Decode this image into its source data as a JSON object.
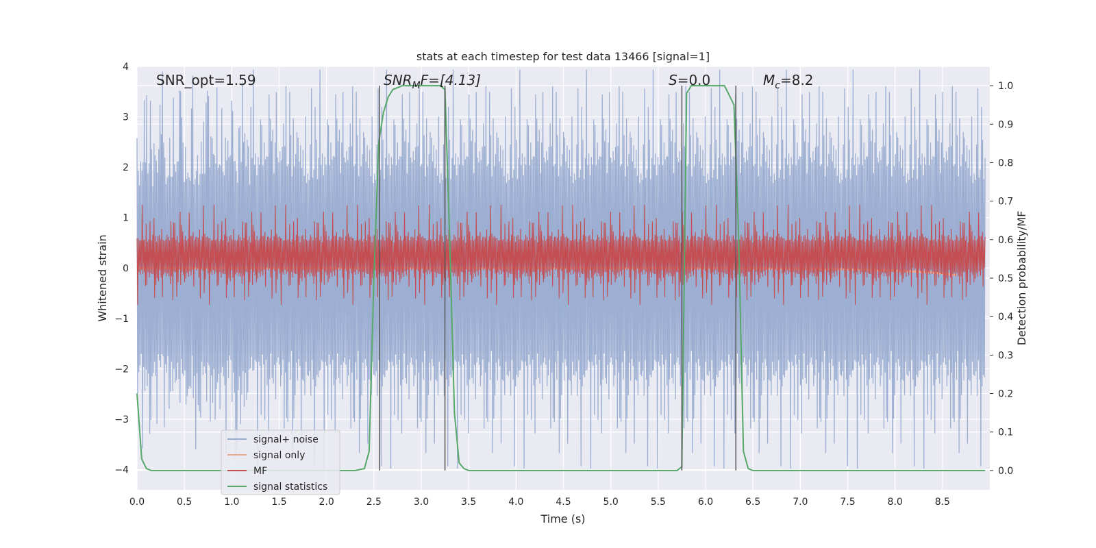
{
  "chart_data": {
    "type": "line",
    "title": "stats at each timestep for test data 13466 [signal=1]",
    "xlabel": "Time (s)",
    "ylabel": "Whitened strain",
    "y2label": "Detection probability/MF",
    "xlim": [
      0,
      9
    ],
    "ylim": [
      -4.4,
      4
    ],
    "y2lim": [
      -0.05,
      1.05
    ],
    "xticks": [
      "0.0",
      "0.5",
      "1.0",
      "1.5",
      "2.0",
      "2.5",
      "3.0",
      "3.5",
      "4.0",
      "4.5",
      "5.0",
      "5.5",
      "6.0",
      "6.5",
      "7.0",
      "7.5",
      "8.0",
      "8.5"
    ],
    "yticks": [
      "4",
      "3",
      "2",
      "1",
      "0",
      "−1",
      "−2",
      "−3",
      "−4"
    ],
    "y2ticks": [
      "0.0",
      "0.1",
      "0.2",
      "0.3",
      "0.4",
      "0.5",
      "0.6",
      "0.7",
      "0.8",
      "0.9",
      "1.0"
    ],
    "grid": true,
    "legend_position": "lower-left",
    "annotations": {
      "snr_opt": "SNR_opt=1.59",
      "snr_mf_main": "SNR",
      "snr_mf_sub": "M",
      "snr_mf_tail": "F=[4.13]",
      "s_main": "S",
      "s_tail": "=0.0",
      "mc_main": "M",
      "mc_sub": "c",
      "mc_tail": "=8.2"
    },
    "vlines": [
      2.56,
      3.25,
      5.75,
      6.32
    ],
    "series": [
      {
        "name": "signal+ noise",
        "color": "#98acd0",
        "axis": "left",
        "style": "noise",
        "envelope_points": 1400,
        "amplitude_typical": 1.6,
        "amplitude_peak": 3.5
      },
      {
        "name": "signal only",
        "color": "#e8a98f",
        "axis": "left",
        "x": [
          0,
          6.3,
          6.8,
          7.4,
          8.0,
          8.4,
          8.65
        ],
        "y": [
          0.0,
          0.0,
          -0.01,
          -0.02,
          -0.05,
          -0.09,
          -0.14
        ]
      },
      {
        "name": "MF",
        "color": "#c44e52",
        "axis": "right",
        "style": "noise",
        "center": 0.56,
        "amplitude_typical": 0.035,
        "amplitude_peak": 0.13
      },
      {
        "name": "signal statistics",
        "color": "#55a868",
        "axis": "right",
        "x": [
          0.0,
          0.05,
          0.1,
          0.15,
          0.2,
          0.3,
          0.5,
          1.0,
          2.0,
          2.3,
          2.4,
          2.45,
          2.5,
          2.55,
          2.6,
          2.65,
          2.7,
          2.75,
          2.8,
          3.0,
          3.2,
          3.25,
          3.3,
          3.35,
          3.4,
          3.45,
          3.5,
          3.6,
          4.0,
          5.0,
          5.6,
          5.7,
          5.75,
          5.8,
          5.85,
          5.9,
          6.0,
          6.2,
          6.3,
          6.35,
          6.4,
          6.45,
          6.5,
          6.55,
          6.6,
          7.0,
          8.0,
          8.95
        ],
        "y": [
          0.2,
          0.03,
          0.005,
          0.0,
          0.0,
          0.0,
          0.0,
          0.0,
          0.0,
          0.0,
          0.005,
          0.05,
          0.5,
          0.85,
          0.93,
          0.97,
          0.99,
          0.995,
          1.0,
          1.0,
          1.0,
          0.99,
          0.6,
          0.15,
          0.02,
          0.005,
          0.0,
          0.0,
          0.0,
          0.0,
          0.0,
          0.0,
          0.01,
          0.98,
          1.0,
          1.0,
          1.0,
          1.0,
          0.95,
          0.6,
          0.05,
          0.005,
          0.0,
          0.0,
          0.0,
          0.0,
          0.0,
          0.0
        ]
      }
    ]
  }
}
